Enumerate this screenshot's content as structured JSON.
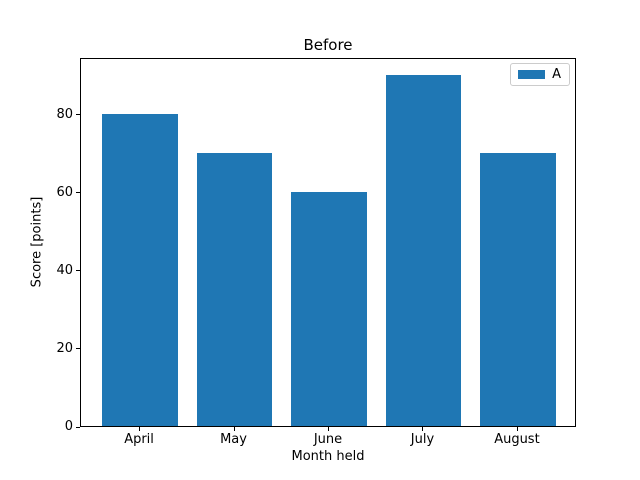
{
  "chart_data": {
    "type": "bar",
    "title": "Before",
    "xlabel": "Month held",
    "ylabel": "Score [points]",
    "categories": [
      "April",
      "May",
      "June",
      "July",
      "August"
    ],
    "series": [
      {
        "name": "A",
        "values": [
          80,
          70,
          60,
          90,
          70
        ],
        "color": "#1f77b4"
      }
    ],
    "yticks": [
      0,
      20,
      40,
      60,
      80
    ],
    "ylim": [
      0,
      94.5
    ],
    "bar_width": 0.8,
    "grid": false,
    "legend": {
      "position": "upper right",
      "entries": [
        "A"
      ]
    },
    "colors": {
      "bar": "#1f77b4",
      "axis": "#000000",
      "legend_border": "#cccccc",
      "background": "#ffffff"
    }
  }
}
